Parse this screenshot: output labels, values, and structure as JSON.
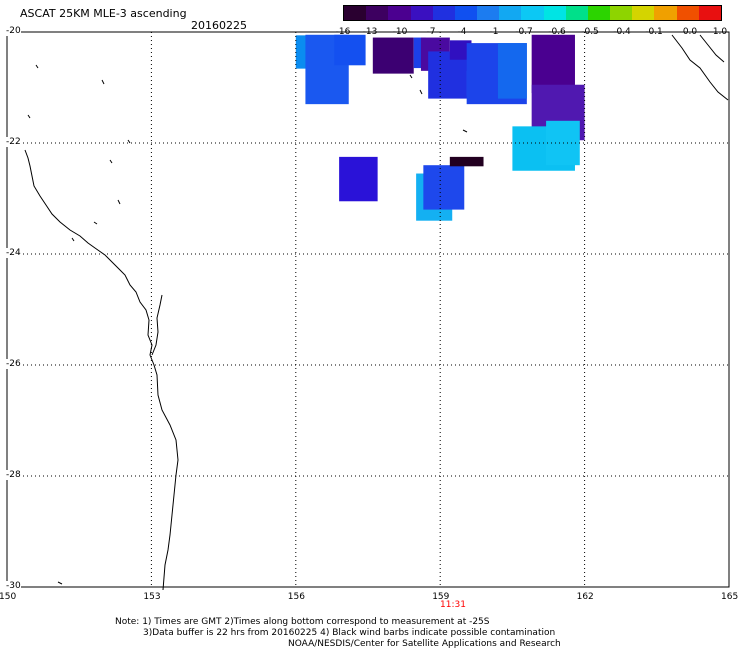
{
  "header": {
    "title": "ASCAT 25KM MLE-3 ascending",
    "date": "20160225"
  },
  "colorbar": {
    "colors": [
      "#2a0030",
      "#3d0060",
      "#4b0090",
      "#3a10c0",
      "#2030e0",
      "#1050f0",
      "#1c7cf0",
      "#12a8f2",
      "#0cc8f4",
      "#00e4e4",
      "#00e08a",
      "#2cd400",
      "#8ed400",
      "#d4d400",
      "#f0a000",
      "#f05000",
      "#e81010"
    ],
    "ticks": [
      "-16",
      "-13",
      "-10",
      "-7",
      "-4",
      "-1",
      "-0.7",
      "-0.6",
      "-0.5",
      "-0.4",
      "-0.1",
      "0.0",
      "1.0"
    ]
  },
  "map": {
    "lon_range": [
      150,
      165
    ],
    "lat_range": [
      -30,
      -20
    ],
    "x_labels": [
      "150",
      "153",
      "156",
      "159",
      "162",
      "165"
    ],
    "y_labels": [
      "-20",
      "-22",
      "-24",
      "-26",
      "-28",
      "-30"
    ],
    "time_label": "11:31",
    "time_color": "#ff0000",
    "cells": [
      {
        "lon": 156.0,
        "lat": -20.06,
        "dlon": 0.3,
        "dlat": 0.6,
        "color": "#0a8cf0"
      },
      {
        "lon": 156.2,
        "lat": -20.05,
        "dlon": 0.9,
        "dlat": 1.25,
        "color": "#1a58f0"
      },
      {
        "lon": 156.8,
        "lat": -20.05,
        "dlon": 0.65,
        "dlat": 0.55,
        "color": "#1450f0"
      },
      {
        "lon": 157.6,
        "lat": -20.1,
        "dlon": 0.85,
        "dlat": 0.65,
        "color": "#3c0072"
      },
      {
        "lon": 158.45,
        "lat": -20.1,
        "dlon": 0.25,
        "dlat": 0.55,
        "color": "#1c40e8"
      },
      {
        "lon": 158.6,
        "lat": -20.1,
        "dlon": 0.6,
        "dlat": 0.6,
        "color": "#4a0aa0"
      },
      {
        "lon": 158.75,
        "lat": -20.35,
        "dlon": 0.95,
        "dlat": 0.85,
        "color": "#2030e0"
      },
      {
        "lon": 159.2,
        "lat": -20.15,
        "dlon": 0.45,
        "dlat": 0.35,
        "color": "#3010c0"
      },
      {
        "lon": 159.55,
        "lat": -20.7,
        "dlon": 0.35,
        "dlat": 0.45,
        "color": "#1a66ee"
      },
      {
        "lon": 159.55,
        "lat": -20.2,
        "dlon": 1.25,
        "dlat": 1.1,
        "color": "#1c44ea"
      },
      {
        "lon": 160.2,
        "lat": -20.2,
        "dlon": 0.6,
        "dlat": 1.0,
        "color": "#1468ee"
      },
      {
        "lon": 160.9,
        "lat": -20.05,
        "dlon": 0.9,
        "dlat": 1.05,
        "color": "#4a0090"
      },
      {
        "lon": 160.9,
        "lat": -20.95,
        "dlon": 1.1,
        "dlat": 1.0,
        "color": "#5018b0"
      },
      {
        "lon": 160.5,
        "lat": -21.7,
        "dlon": 1.3,
        "dlat": 0.8,
        "color": "#0bc0f2"
      },
      {
        "lon": 161.2,
        "lat": -21.6,
        "dlon": 0.7,
        "dlat": 0.8,
        "color": "#10c4f4"
      },
      {
        "lon": 156.9,
        "lat": -22.25,
        "dlon": 0.8,
        "dlat": 0.8,
        "color": "#2a12d8"
      },
      {
        "lon": 158.5,
        "lat": -22.55,
        "dlon": 0.75,
        "dlat": 0.85,
        "color": "#14b0f2"
      },
      {
        "lon": 158.65,
        "lat": -22.4,
        "dlon": 0.85,
        "dlat": 0.8,
        "color": "#1e48ec"
      },
      {
        "lon": 159.2,
        "lat": -22.25,
        "dlon": 0.7,
        "dlat": 0.17,
        "color": "#220020"
      }
    ]
  },
  "footer": {
    "line1": "Note: 1) Times are GMT 2)Times along bottom correspond to measurement at -25S",
    "line2": "3)Data buffer is 22 hrs from 20160225 4) Black wind barbs indicate possible contamination",
    "line3": "NOAA/NESDIS/Center for Satellite Applications and Research"
  }
}
